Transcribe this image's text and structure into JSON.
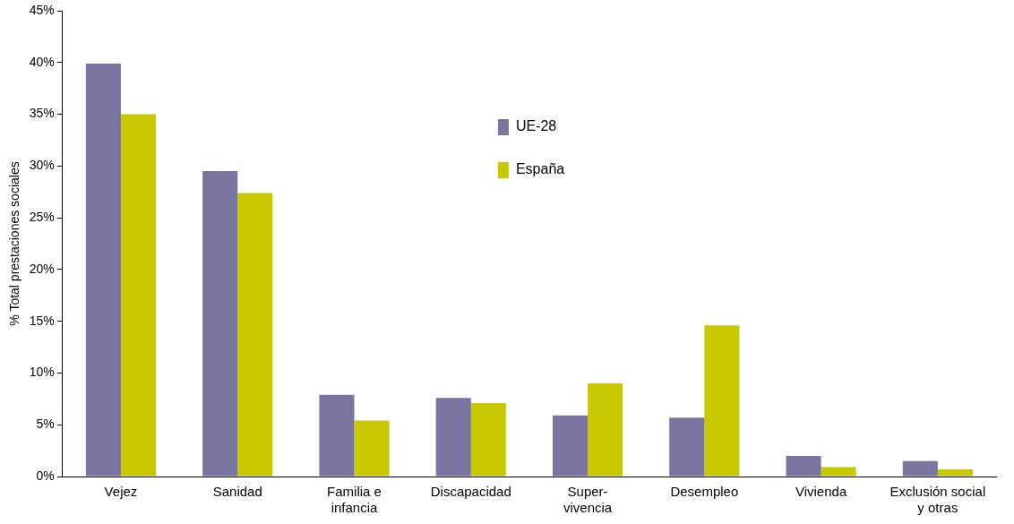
{
  "chart_data": {
    "type": "bar",
    "ylabel": "% Total prestaciones sociales",
    "categories": [
      "Vejez",
      "Sanidad",
      "Familia e\ninfancia",
      "Discapacidad",
      "Super-\nvivencia",
      "Desempleo",
      "Vivienda",
      "Exclusión social\ny otras"
    ],
    "series": [
      {
        "name": "UE-28",
        "color": "#7a74a0",
        "values": [
          39.9,
          29.5,
          7.9,
          7.6,
          5.9,
          5.7,
          2.0,
          1.5
        ]
      },
      {
        "name": "España",
        "color": "#c8c800",
        "values": [
          35.0,
          27.4,
          5.4,
          7.1,
          9.0,
          14.6,
          0.9,
          0.7
        ]
      }
    ],
    "ylim": [
      0,
      45
    ],
    "yticks": [
      {
        "value": 0,
        "label": "0%"
      },
      {
        "value": 5,
        "label": "5%"
      },
      {
        "value": 10,
        "label": "10%"
      },
      {
        "value": 15,
        "label": "15%"
      },
      {
        "value": 20,
        "label": "20%"
      },
      {
        "value": 25,
        "label": "25%"
      },
      {
        "value": 30,
        "label": "30%"
      },
      {
        "value": 35,
        "label": "35%"
      },
      {
        "value": 40,
        "label": "40%"
      },
      {
        "value": 45,
        "label": "45%"
      }
    ],
    "grid": false,
    "legend": "top"
  }
}
